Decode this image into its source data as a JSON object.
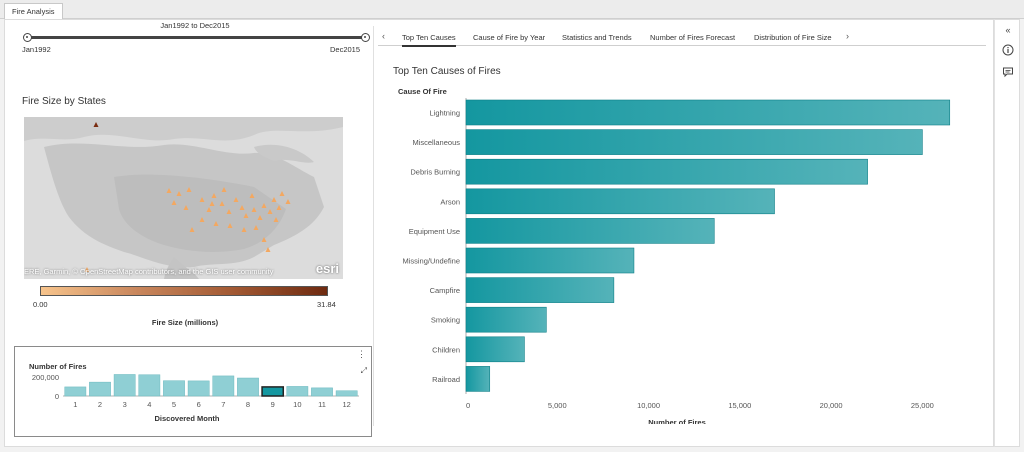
{
  "doc_tab": "Fire Analysis",
  "slider": {
    "title": "Jan1992 to Dec2015",
    "min_label": "Jan1992",
    "max_label": "Dec2015"
  },
  "map_section": {
    "title": "Fire Size by States",
    "attribution": "ERE, Garmin, © OpenStreetMap contributors, and the GIS user community",
    "logo": "esri"
  },
  "color_legend": {
    "min": "0.00",
    "max": "31.84",
    "title": "Fire Size (millions)",
    "color_low": "#f7c48c",
    "color_high": "#6e2a10"
  },
  "tabs": [
    {
      "label": "Top Ten Causes",
      "active": true
    },
    {
      "label": "Cause of Fire by Year",
      "active": false
    },
    {
      "label": "Statistics and Trends",
      "active": false
    },
    {
      "label": "Number of Fires Forecast",
      "active": false
    },
    {
      "label": "Distribution of Fire Size",
      "active": false
    }
  ],
  "right_icons": [
    "collapse-icon",
    "info-icon",
    "comment-icon"
  ],
  "chart_data": [
    {
      "type": "bar",
      "orientation": "horizontal",
      "title": "Top Ten Causes of Fires",
      "category_title": "Cause Of Fire",
      "xlabel": "Number of Fires",
      "categories": [
        "Lightning",
        "Miscellaneous",
        "Debris Burning",
        "Arson",
        "Equipment Use",
        "Missing/Undefine",
        "Campfire",
        "Smoking",
        "Children",
        "Railroad"
      ],
      "values": [
        26500,
        25000,
        22000,
        16900,
        13600,
        9200,
        8100,
        4400,
        3200,
        1300
      ],
      "xlim": [
        0,
        27500
      ],
      "xticks": [
        0,
        5000,
        10000,
        15000,
        20000,
        25000
      ],
      "xtick_labels": [
        "0",
        "5,000",
        "10,000",
        "15,000",
        "20,000",
        "25,000"
      ],
      "color": "#1497a0"
    },
    {
      "type": "bar",
      "ylabel": "Number of Fires",
      "xlabel": "Discovered Month",
      "categories": [
        "1",
        "2",
        "3",
        "4",
        "5",
        "6",
        "7",
        "8",
        "9",
        "10",
        "11",
        "12"
      ],
      "values": [
        95000,
        145000,
        225000,
        222000,
        160000,
        158000,
        210000,
        188000,
        95000,
        100000,
        85000,
        55000
      ],
      "ylim": [
        0,
        230000
      ],
      "yticks": [
        0,
        200000
      ],
      "ytick_labels": [
        "0",
        "200,000"
      ],
      "selected": "9",
      "color": "#8fcfd4",
      "selected_color": "#1497a0"
    }
  ]
}
